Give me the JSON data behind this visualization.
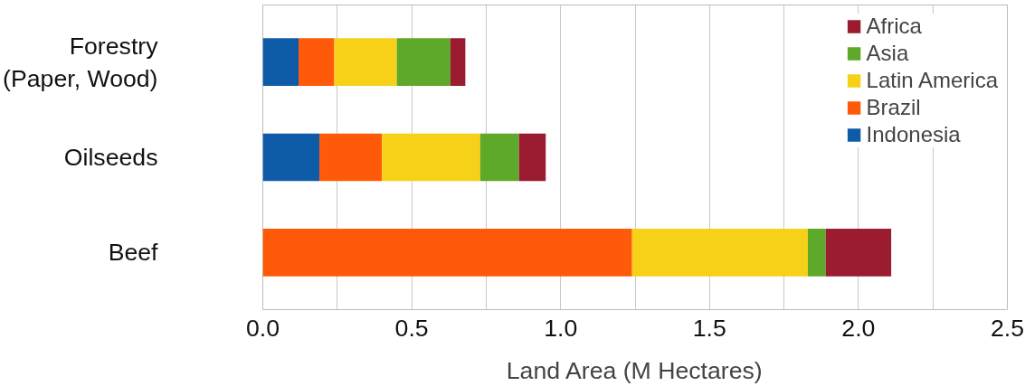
{
  "chart_data": {
    "type": "bar",
    "orientation": "horizontal",
    "stacked": true,
    "categories": [
      "Forestry\n(Paper, Wood)",
      "Oilseeds",
      "Beef"
    ],
    "xlabel": "Land Area (M Hectares)",
    "series": [
      {
        "name": "Indonesia",
        "color": "#0e5ca8",
        "values": [
          0.12,
          0.19,
          0
        ]
      },
      {
        "name": "Brazil",
        "color": "#ff5a0a",
        "values": [
          0.12,
          0.21,
          1.24
        ]
      },
      {
        "name": "Latin America",
        "color": "#f7d117",
        "values": [
          0.21,
          0.33,
          0.59
        ]
      },
      {
        "name": "Asia",
        "color": "#5ea82a",
        "values": [
          0.18,
          0.13,
          0.06
        ]
      },
      {
        "name": "Africa",
        "color": "#9b1b30",
        "values": [
          0.05,
          0.09,
          0.22
        ]
      }
    ],
    "xlim": [
      0,
      2.5
    ],
    "xticks": [
      {
        "value": 0,
        "label": "0.0"
      },
      {
        "value": 0.25,
        "label": null
      },
      0.5,
      {
        "value": 0.75,
        "label": null
      },
      {
        "value": 1,
        "label": "1.0"
      },
      {
        "value": 1.25,
        "label": null
      },
      1.5,
      {
        "value": 1.75,
        "label": null
      },
      {
        "value": 2,
        "label": "2.0"
      },
      {
        "value": 2.25,
        "label": null
      },
      2.5
    ],
    "grid": "x",
    "legend": "top right"
  }
}
